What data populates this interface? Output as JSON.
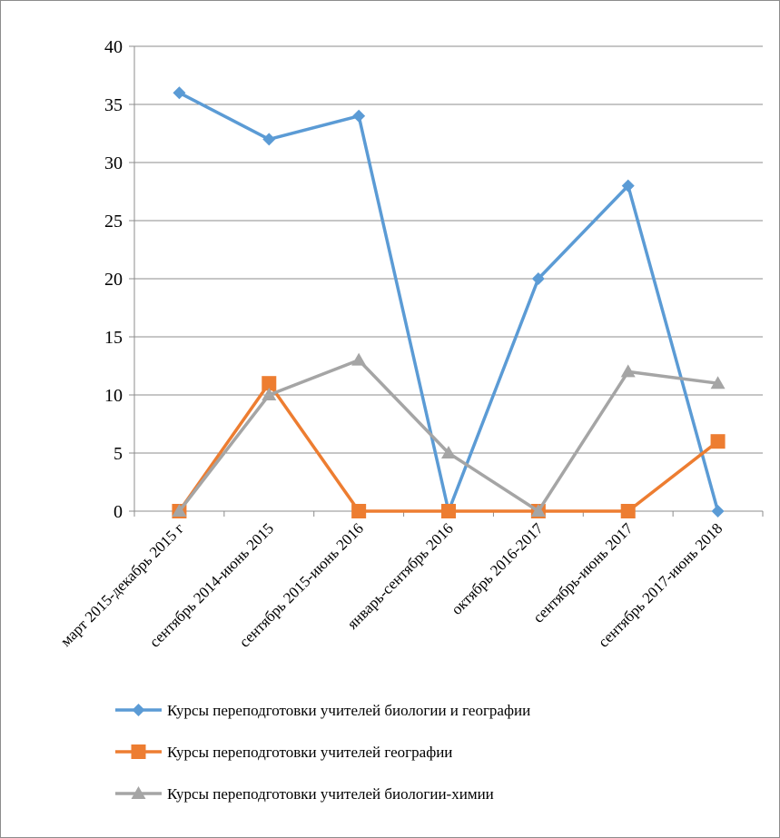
{
  "chart_data": {
    "type": "line",
    "title": "",
    "xlabel": "",
    "ylabel": "",
    "ylim": [
      0,
      40
    ],
    "y_ticks": [
      0,
      5,
      10,
      15,
      20,
      25,
      30,
      35,
      40
    ],
    "grid": "horizontal",
    "legend_position": "bottom",
    "categories": [
      "март 2015-декабрь 2015 г",
      "сентябрь 2014-июнь 2015",
      "сентябрь 2015-июнь 2016",
      "январь-сентябрь 2016",
      "октябрь 2016-2017",
      "сентябрь-июнь 2017",
      "сентябрь 2017-июнь 2018"
    ],
    "series": [
      {
        "name": "Курсы переподготовки учителей биологии и географии",
        "values": [
          36,
          32,
          34,
          0,
          20,
          28,
          0
        ],
        "color": "#5B9BD5",
        "marker": "diamond"
      },
      {
        "name": "Курсы переподготовки учителей географии",
        "values": [
          0,
          11,
          0,
          0,
          0,
          0,
          6
        ],
        "color": "#ED7D31",
        "marker": "square"
      },
      {
        "name": "Курсы переподготовки учителей биологии-химии",
        "values": [
          0,
          10,
          13,
          5,
          0,
          12,
          11
        ],
        "color": "#A5A5A5",
        "marker": "triangle"
      }
    ]
  }
}
